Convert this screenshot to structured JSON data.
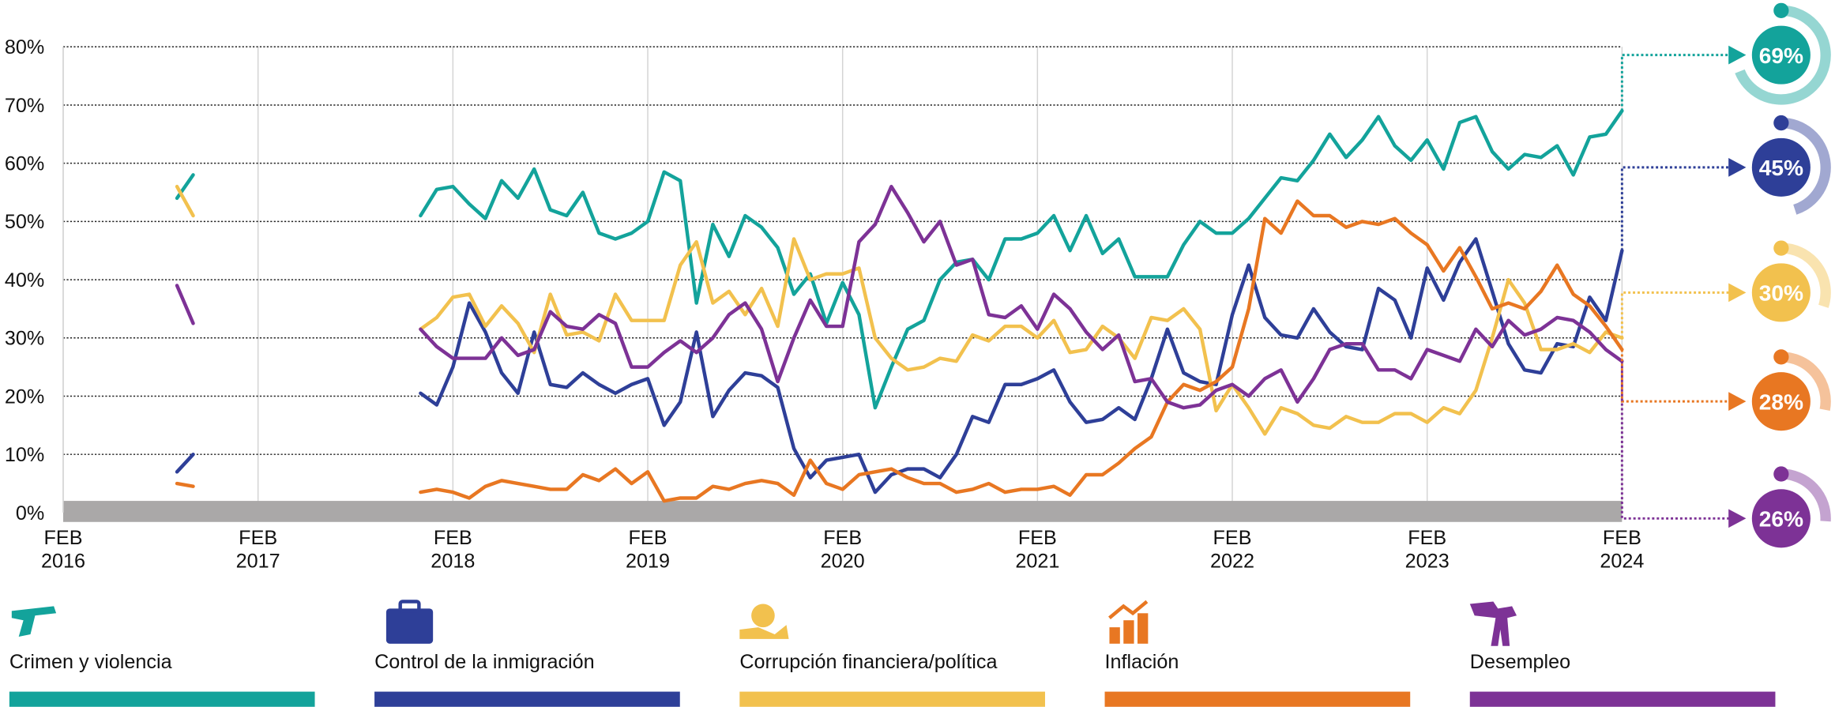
{
  "chart_data": {
    "type": "line",
    "x": [
      2016.667,
      2016.75,
      2017.0,
      2017.917,
      2018.0,
      2018.083,
      2018.167,
      2018.25,
      2018.333,
      2018.417,
      2018.5,
      2018.583,
      2018.667,
      2018.75,
      2018.833,
      2018.917,
      2019.0,
      2019.083,
      2019.167,
      2019.25,
      2019.333,
      2019.417,
      2019.5,
      2019.583,
      2019.667,
      2019.75,
      2019.833,
      2019.917,
      2020.0,
      2020.083,
      2020.167,
      2020.25,
      2020.333,
      2020.417,
      2020.5,
      2020.583,
      2020.667,
      2020.75,
      2020.833,
      2020.917,
      2021.0,
      2021.083,
      2021.167,
      2021.25,
      2021.333,
      2021.417,
      2021.5,
      2021.583,
      2021.667,
      2021.75,
      2021.833,
      2021.917,
      2022.0,
      2022.083,
      2022.167,
      2022.25,
      2022.333,
      2022.417,
      2022.5,
      2022.583,
      2022.667,
      2022.75,
      2022.833,
      2022.917,
      2023.0,
      2023.083,
      2023.167,
      2023.25,
      2023.333,
      2023.417,
      2023.5,
      2023.583,
      2023.667,
      2023.75,
      2023.833,
      2023.917,
      2024.0,
      2024.083
    ],
    "xlim": [
      2016.083,
      2024.083
    ],
    "xticks": [
      {
        "value": 2016.083,
        "label": "FEB 2016"
      },
      {
        "value": 2017.083,
        "label": "FEB 2017"
      },
      {
        "value": 2018.083,
        "label": "FEB 2018"
      },
      {
        "value": 2019.083,
        "label": "FEB 2019"
      },
      {
        "value": 2020.083,
        "label": "FEB 2020"
      },
      {
        "value": 2021.083,
        "label": "FEB 2021"
      },
      {
        "value": 2022.083,
        "label": "FEB 2022"
      },
      {
        "value": 2023.083,
        "label": "FEB 2023"
      },
      {
        "value": 2024.083,
        "label": "FEB 2024"
      }
    ],
    "ylim": [
      0,
      80
    ],
    "yticks": [
      {
        "value": 0,
        "label": "0%"
      },
      {
        "value": 10,
        "label": "10%"
      },
      {
        "value": 20,
        "label": "20%"
      },
      {
        "value": 30,
        "label": "30%"
      },
      {
        "value": 40,
        "label": "40%"
      },
      {
        "value": 50,
        "label": "50%"
      },
      {
        "value": 60,
        "label": "60%"
      },
      {
        "value": 70,
        "label": "70%"
      },
      {
        "value": 80,
        "label": "80%"
      }
    ],
    "grid": true,
    "series": [
      {
        "name": "Crimen y violencia",
        "color": "#13a39b",
        "end_label": "69%",
        "values": [
          54,
          58,
          null,
          51,
          55.5,
          56,
          53,
          50.5,
          57,
          54,
          59,
          52,
          51,
          55,
          48,
          47,
          48,
          50,
          58.5,
          57,
          36,
          49.5,
          44,
          51,
          49,
          45.5,
          37.5,
          41,
          32.5,
          39.5,
          34,
          18,
          25,
          31.5,
          33,
          40,
          43,
          43.5,
          40,
          47,
          47,
          48,
          51,
          45,
          51,
          44.5,
          47,
          40.5,
          40.5,
          40.5,
          46,
          50,
          48,
          48,
          50.5,
          54,
          57.5,
          57,
          60.5,
          65,
          61,
          64,
          68,
          63,
          60.5,
          64,
          59,
          67,
          68,
          62,
          59,
          61.5,
          61,
          63,
          58,
          64.5,
          65,
          69
        ]
      },
      {
        "name": "Control de la inmigración",
        "color": "#2e3f98",
        "end_label": "45%",
        "values": [
          7,
          10,
          null,
          20.5,
          18.5,
          25,
          36,
          31,
          24,
          20.5,
          31,
          22,
          21.5,
          24,
          22,
          20.5,
          22,
          23,
          15,
          19,
          31,
          16.5,
          21,
          24,
          23.5,
          21.5,
          11,
          6,
          9,
          9.5,
          10,
          3.5,
          6.5,
          7.5,
          7.5,
          6,
          10,
          16.5,
          15.5,
          22,
          22,
          23,
          24.5,
          19,
          15.5,
          16,
          18,
          16,
          23,
          31.5,
          24,
          22.5,
          22,
          34,
          42.5,
          33.5,
          30.5,
          30,
          35,
          31,
          28.5,
          28,
          38.5,
          36.5,
          30,
          42,
          36.5,
          43,
          47,
          38,
          29,
          24.5,
          24,
          29,
          28.5,
          37,
          33,
          45
        ]
      },
      {
        "name": "Corrupción financiera/política",
        "color": "#f2c14e",
        "end_label": "30%",
        "values": [
          56,
          51,
          null,
          31.5,
          33.5,
          37,
          37.5,
          32,
          35.5,
          32.5,
          27.5,
          37.5,
          30.5,
          31,
          29.5,
          37.5,
          33,
          33,
          33,
          42.5,
          46.5,
          36,
          38,
          34,
          38.5,
          32,
          47,
          40,
          41,
          41,
          42,
          30,
          26.5,
          24.5,
          25,
          26.5,
          26,
          30.5,
          29.5,
          32,
          32,
          30,
          33,
          27.5,
          28,
          32,
          30,
          26.5,
          33.5,
          33,
          35,
          31.5,
          17.5,
          22,
          18,
          13.5,
          18,
          17,
          15,
          14.5,
          16.5,
          15.5,
          15.5,
          17,
          17,
          15.5,
          18,
          17,
          21,
          30,
          40,
          36,
          28,
          28,
          29,
          27.5,
          31,
          30
        ]
      },
      {
        "name": "Inflación",
        "color": "#e87722",
        "end_label": "28%",
        "values": [
          5,
          4.5,
          null,
          3.5,
          4,
          3.5,
          2.5,
          4.5,
          5.5,
          5,
          4.5,
          4,
          4,
          6.5,
          5.5,
          7.5,
          5,
          7,
          2,
          2.5,
          2.5,
          4.5,
          4,
          5,
          5.5,
          5,
          3,
          9,
          5,
          4,
          6.5,
          7,
          7.5,
          6,
          5,
          5,
          3.5,
          4,
          5,
          3.5,
          4,
          4,
          4.5,
          3,
          6.5,
          6.5,
          8.5,
          11,
          13,
          19,
          22,
          21,
          22.5,
          25,
          35,
          50.5,
          48,
          53.5,
          51,
          51,
          49,
          50,
          49.5,
          50.5,
          48,
          46,
          41.5,
          45.5,
          40.5,
          35,
          36,
          35,
          38,
          42.5,
          37.5,
          35.5,
          32,
          28
        ]
      },
      {
        "name": "Desempleo",
        "color": "#7d3296",
        "end_label": "26%",
        "values": [
          39,
          32.5,
          null,
          31.5,
          28.5,
          26.5,
          26.5,
          26.5,
          30,
          27,
          28,
          34.5,
          32,
          31.5,
          34,
          32.5,
          25,
          25,
          27.5,
          29.5,
          27.5,
          30,
          34,
          36,
          31.5,
          22.5,
          30,
          36.5,
          32,
          32,
          46.5,
          49.5,
          56,
          51.5,
          46.5,
          50,
          42.5,
          43.5,
          34,
          33.5,
          35.5,
          31.5,
          37.5,
          35,
          31,
          28,
          30.5,
          22.5,
          23,
          19,
          18,
          18.5,
          21,
          22,
          20,
          23,
          24.5,
          19,
          23,
          28,
          29,
          29,
          24.5,
          24.5,
          23,
          28,
          27,
          26,
          31.5,
          28.5,
          33,
          30.5,
          31.5,
          33.5,
          33,
          31,
          28,
          26
        ]
      }
    ]
  }
}
